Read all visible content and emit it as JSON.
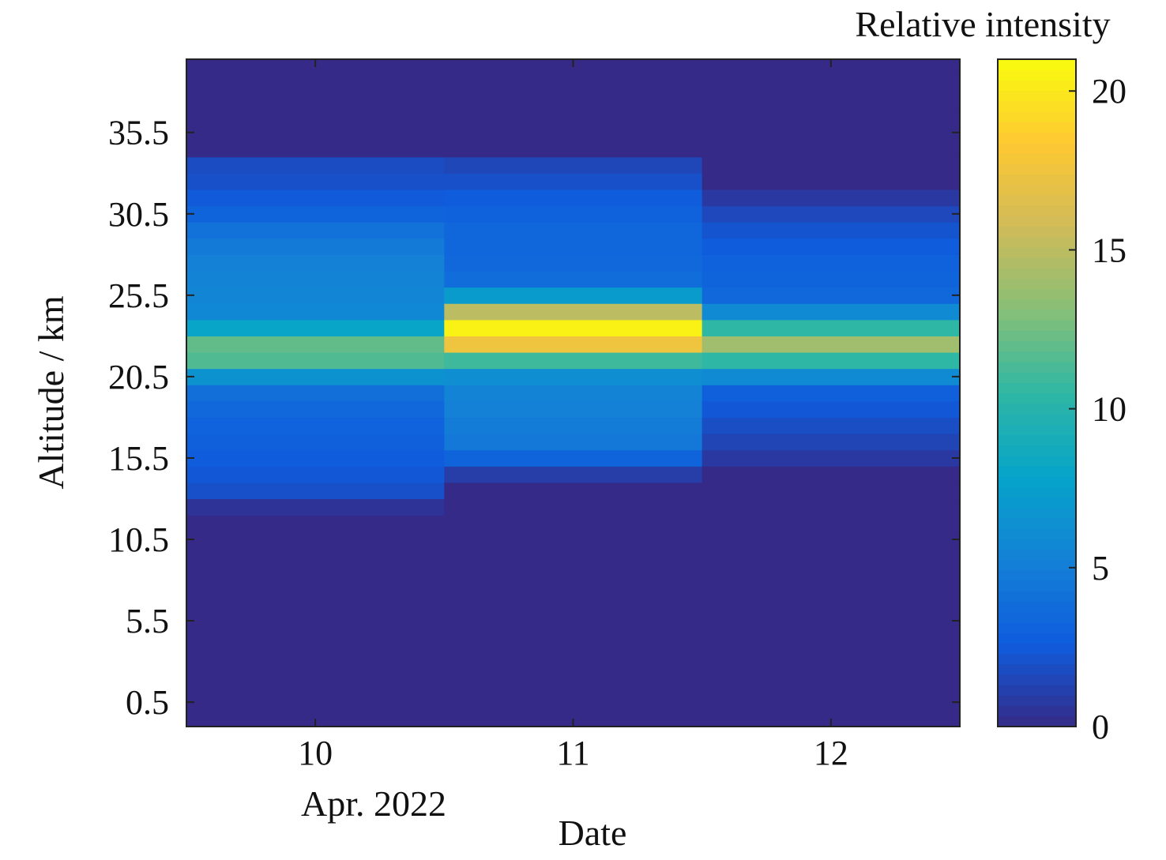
{
  "chart_data": {
    "type": "heatmap",
    "x_label": "Date",
    "x_sublabel": "Apr. 2022",
    "y_label": "Altitude / km",
    "colorbar_label": "Relative intensity",
    "x": [
      10,
      11,
      12
    ],
    "x_tick_labels": [
      "10",
      "11",
      "12"
    ],
    "xlim": [
      9.5,
      12.5
    ],
    "y_ticks": [
      0.5,
      5.5,
      10.5,
      15.5,
      20.5,
      25.5,
      30.5,
      35.5
    ],
    "y_tick_labels": [
      "0.5",
      "5.5",
      "10.5",
      "15.5",
      "20.5",
      "25.5",
      "30.5",
      "35.5"
    ],
    "ylim": [
      -1,
      40
    ],
    "altitude_bin_km": 1,
    "altitudes_km": [
      0.5,
      1.5,
      2.5,
      3.5,
      4.5,
      5.5,
      6.5,
      7.5,
      8.5,
      9.5,
      10.5,
      11.5,
      12.5,
      13.5,
      14.5,
      15.5,
      16.5,
      17.5,
      18.5,
      19.5,
      20.5,
      21.5,
      22.5,
      23.5,
      24.5,
      25.5,
      26.5,
      27.5,
      28.5,
      29.5,
      30.5,
      31.5,
      32.5,
      33.5,
      34.5,
      35.5,
      36.5,
      37.5,
      38.5
    ],
    "values": [
      [
        0,
        0,
        0,
        0,
        0,
        0,
        0,
        0,
        0,
        0,
        0,
        0,
        0.5,
        2.0,
        2.4,
        2.6,
        2.9,
        3.1,
        3.5,
        4.0,
        6.5,
        11.5,
        12.0,
        8.0,
        5.8,
        5.6,
        5.4,
        5.2,
        4.8,
        4.2,
        3.2,
        2.5,
        2.0,
        1.8,
        0,
        0,
        0,
        0,
        0
      ],
      [
        0,
        0,
        0,
        0,
        0,
        0,
        0,
        0,
        0,
        0,
        0,
        0,
        0,
        0,
        1.0,
        3.2,
        4.6,
        4.9,
        5.2,
        5.5,
        6.2,
        11.0,
        17.5,
        20.5,
        15.0,
        7.2,
        3.8,
        3.5,
        3.4,
        3.3,
        3.0,
        2.6,
        2.0,
        1.5,
        0,
        0,
        0,
        0,
        0
      ],
      [
        0,
        0,
        0,
        0,
        0,
        0,
        0,
        0,
        0,
        0,
        0,
        0,
        0,
        0,
        0,
        0.8,
        1.4,
        1.9,
        2.4,
        2.9,
        6.0,
        10.5,
        14.0,
        10.5,
        6.0,
        3.5,
        3.2,
        3.0,
        2.6,
        2.2,
        1.6,
        0.8,
        0,
        0,
        0,
        0,
        0,
        0,
        0
      ]
    ],
    "colormap": "parula",
    "color_range": [
      0,
      21
    ],
    "colorbar_ticks": [
      0,
      5,
      10,
      15,
      20
    ],
    "colorbar_tick_labels": [
      "0",
      "5",
      "10",
      "15",
      "20"
    ],
    "colors": {
      "colormap_stops": [
        "#352a87",
        "#0f5cdd",
        "#1481d6",
        "#06a4ca",
        "#2eb7a4",
        "#87bf77",
        "#d1bb59",
        "#fec832",
        "#f9fb0e"
      ],
      "axis": "#222222"
    }
  }
}
